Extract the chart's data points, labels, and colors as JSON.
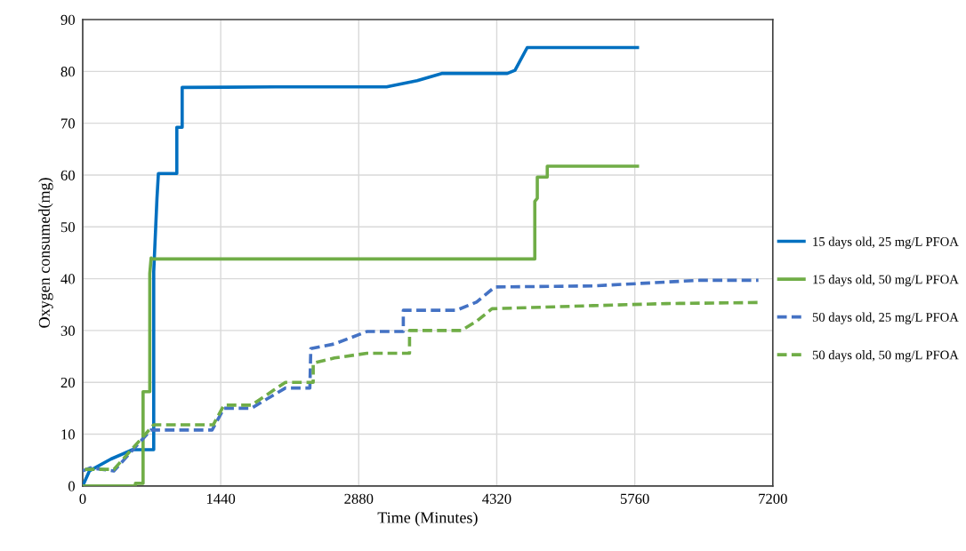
{
  "chart_data": {
    "type": "line",
    "xlabel": "Time (Minutes)",
    "ylabel": "Oxygen consumed(mg)",
    "xlim": [
      0,
      7200
    ],
    "ylim": [
      0,
      90
    ],
    "xticks": [
      0,
      1440,
      2880,
      4320,
      5760,
      7200
    ],
    "yticks": [
      0,
      10,
      20,
      30,
      40,
      50,
      60,
      70,
      80,
      90
    ],
    "grid": true,
    "legend": "right",
    "marker": "none",
    "series": [
      {
        "name": "15 days old, 25 mg/L PFOA",
        "color": "#0070c0",
        "line_style": "solid",
        "x": [
          0,
          70,
          295,
          520,
          741,
          741,
          775,
          790,
          806,
          806,
          982,
          982,
          1038,
          1038,
          2010,
          3170,
          3215,
          3490,
          3745,
          4430,
          4510,
          4638,
          5805
        ],
        "values": [
          0,
          2.9,
          5.2,
          7.0,
          7.0,
          41.3,
          55.5,
          60.3,
          60.3,
          60.3,
          60.3,
          69.2,
          69.2,
          76.9,
          77.0,
          77.0,
          77.2,
          78.2,
          79.6,
          79.6,
          80.2,
          84.6,
          84.6
        ]
      },
      {
        "name": "15 days old, 50 mg/L PFOA",
        "color": "#70ad47",
        "line_style": "solid",
        "x": [
          0,
          550,
          550,
          630,
          630,
          700,
          700,
          714,
          720,
          4717,
          4717,
          4743,
          4743,
          4847,
          4847,
          5805
        ],
        "values": [
          0,
          0,
          0.5,
          0.5,
          18.2,
          18.2,
          41,
          44,
          43.8,
          43.8,
          54.9,
          55.5,
          59.6,
          59.6,
          61.7,
          61.7
        ]
      },
      {
        "name": "50 days old, 25 mg/L PFOA",
        "color": "#4472c4",
        "line_style": "dashed",
        "x": [
          0,
          80,
          325,
          711,
          1350,
          1475,
          1760,
          2115,
          2370,
          2380,
          2625,
          2965,
          3345,
          3345,
          3900,
          4110,
          4300,
          5325,
          6440,
          7050
        ],
        "values": [
          2.9,
          3.5,
          2.9,
          10.8,
          10.8,
          15.0,
          15.0,
          18.9,
          18.9,
          26.5,
          27.4,
          29.8,
          29.8,
          33.9,
          33.9,
          35.5,
          38.4,
          38.6,
          39.7,
          39.7
        ]
      },
      {
        "name": "50 days old, 50 mg/L PFOA",
        "color": "#70ad47",
        "line_style": "dashed",
        "x": [
          23,
          325,
          741,
          1362,
          1475,
          1760,
          2115,
          2405,
          2405,
          2627,
          2965,
          3410,
          3410,
          3950,
          4110,
          4270,
          5325,
          6090,
          7050
        ],
        "values": [
          3.2,
          3.2,
          11.8,
          11.8,
          15.6,
          15.6,
          20.0,
          20.0,
          23.7,
          24.7,
          25.6,
          25.6,
          30.0,
          30.0,
          31.8,
          34.2,
          34.8,
          35.2,
          35.4
        ]
      }
    ]
  }
}
